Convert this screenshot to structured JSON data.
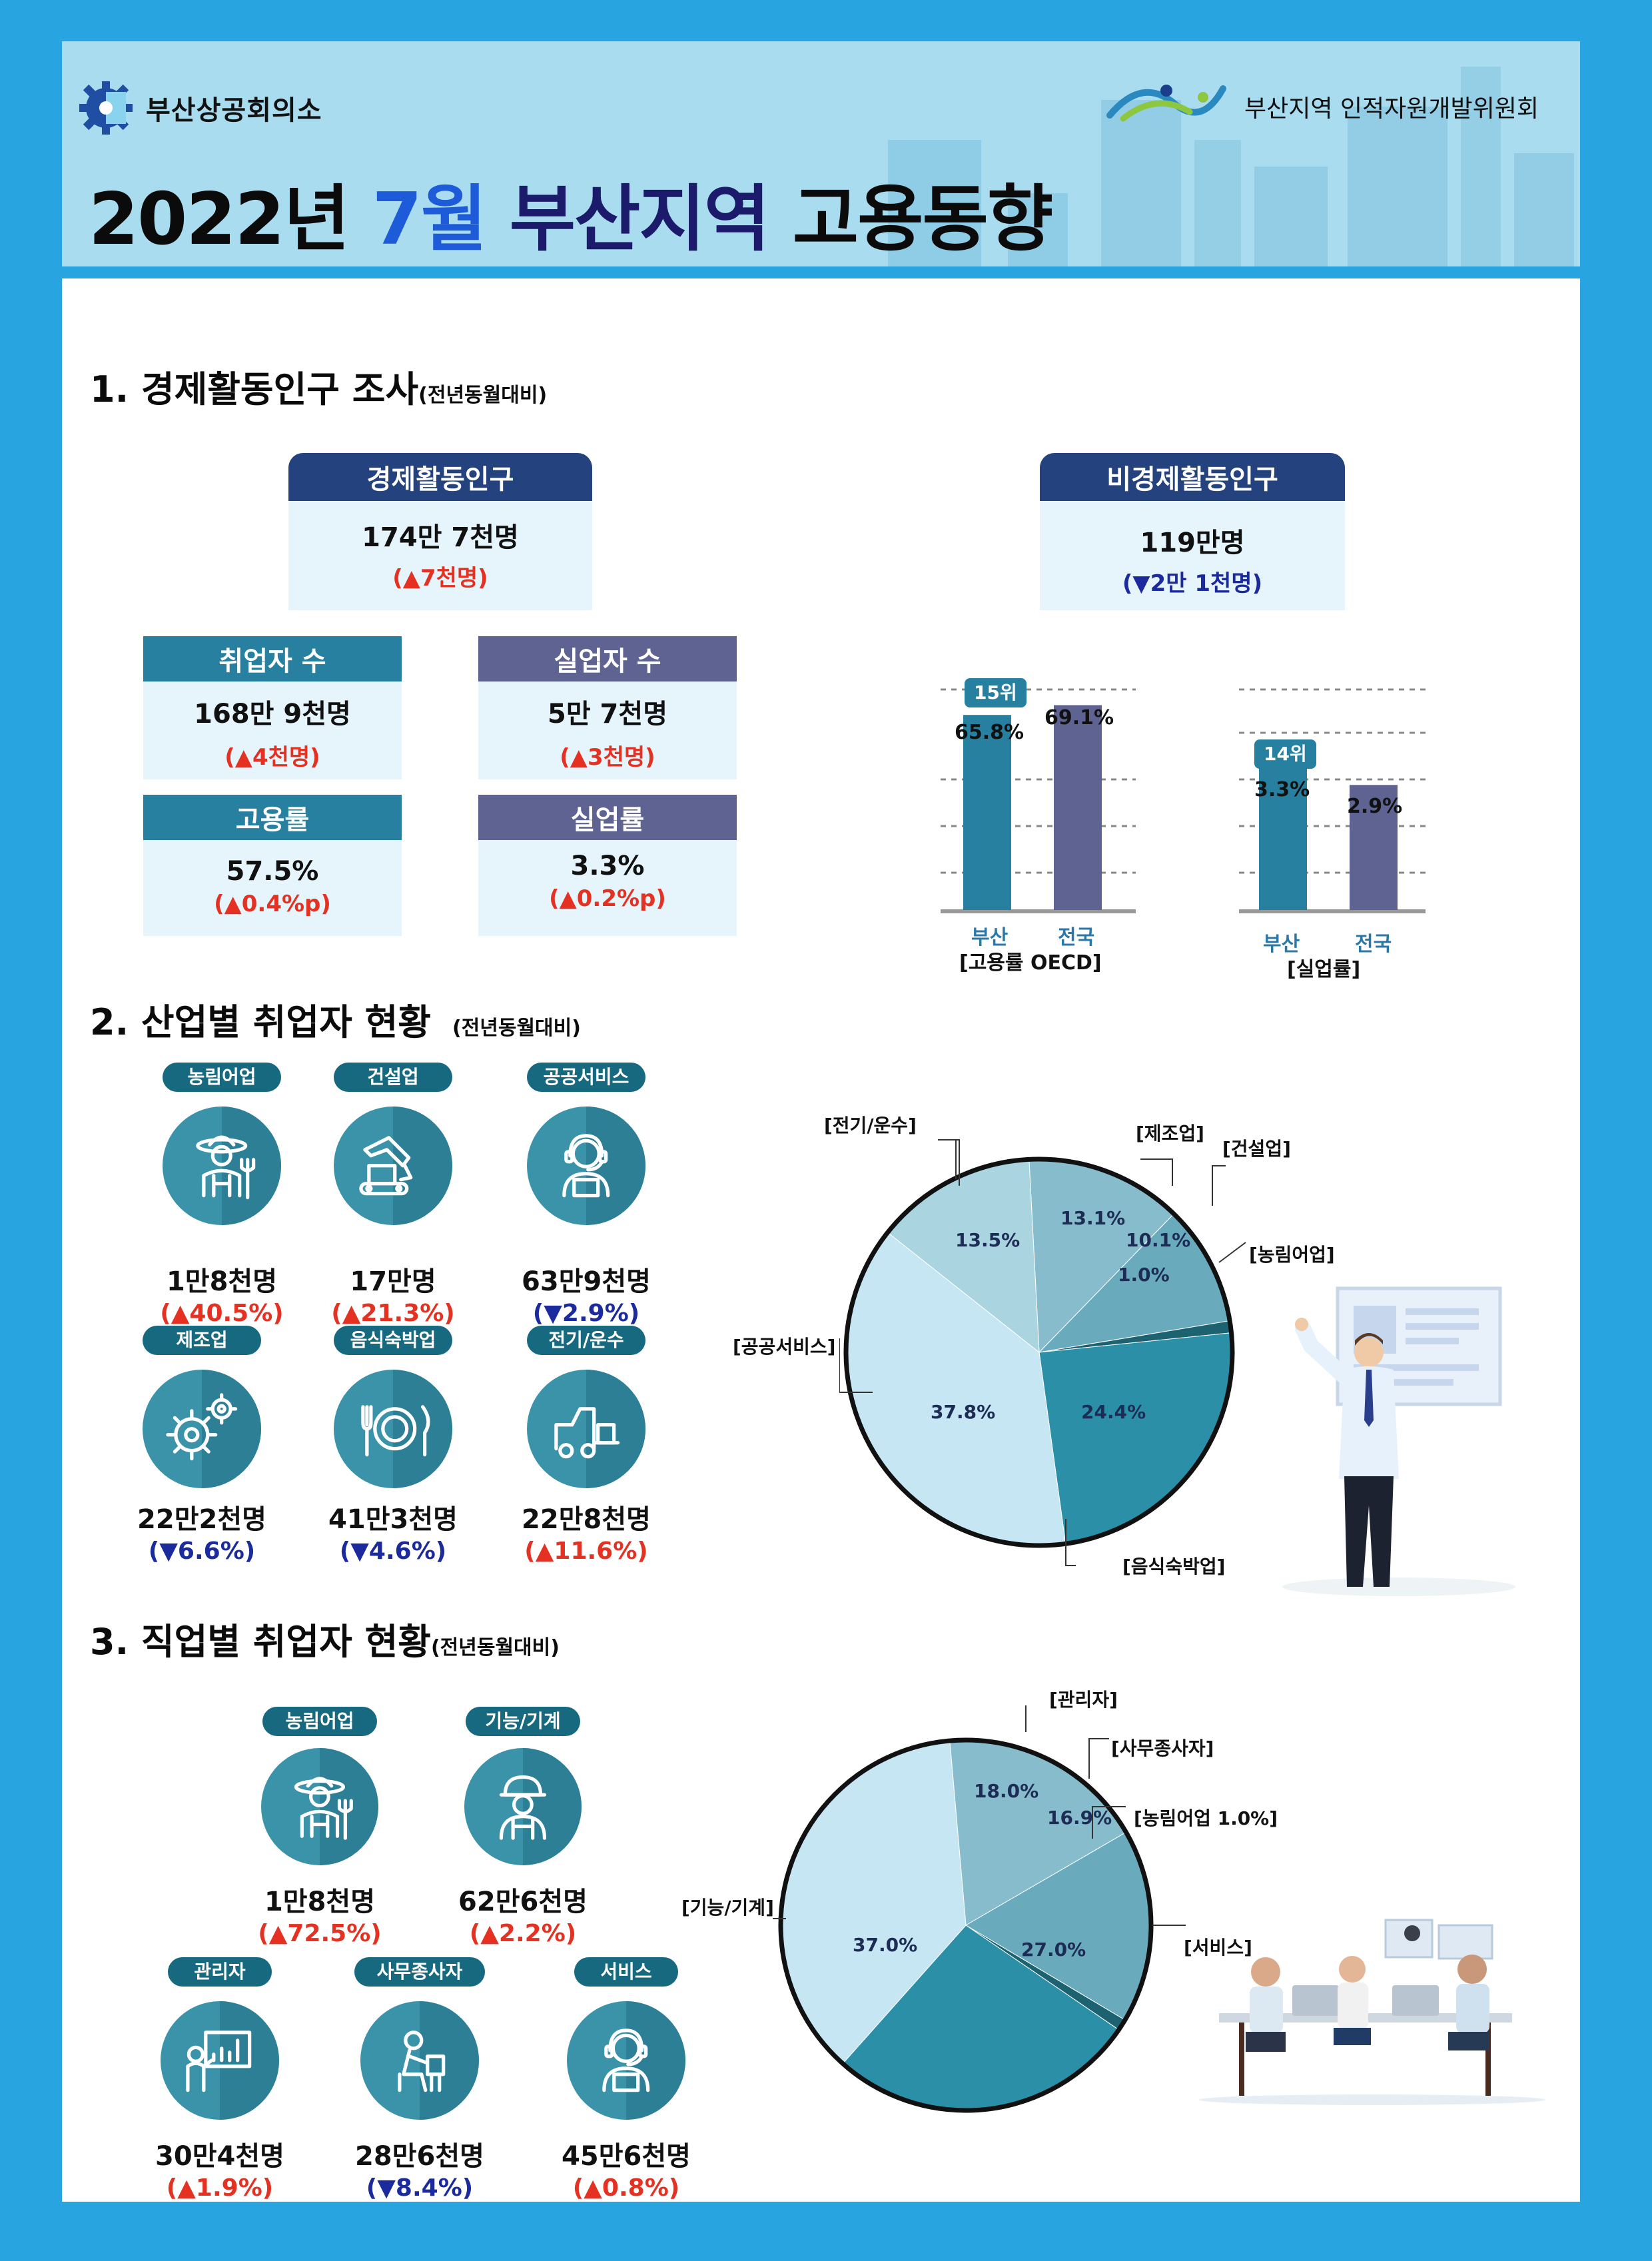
{
  "header": {
    "org_left": "부산상공회의소",
    "org_right": "부산지역 인적자원개발위원회",
    "title_part1": "2022년",
    "title_part2": "7월",
    "title_part3": "부산지역",
    "title_part4": "고용동향"
  },
  "section1": {
    "title": "1. 경제활동인구 조사",
    "subtitle": "(전년동월대비)",
    "active": {
      "label": "경제활동인구",
      "value": "174만 7천명",
      "change": "(▲7천명)"
    },
    "inactive": {
      "label": "비경제활동인구",
      "value": "119만명",
      "change": "(▼2만 1천명)"
    },
    "employed": {
      "label": "취업자 수",
      "value": "168만 9천명",
      "change": "(▲4천명)"
    },
    "unemployed": {
      "label": "실업자 수",
      "value": "5만 7천명",
      "change": "(▲3천명)"
    },
    "employment_rate": {
      "label": "고용률",
      "value": "57.5%",
      "change": "(▲0.4%p)"
    },
    "unemployment_rate": {
      "label": "실업률",
      "value": "3.3%",
      "change": "(▲0.2%p)"
    }
  },
  "chart_data": [
    {
      "type": "bar",
      "categories": [
        "부산",
        "전국"
      ],
      "values": [
        65.8,
        69.1
      ],
      "value_labels": [
        "65.8%",
        "69.1%"
      ],
      "rank_badge": "15위",
      "xlabel": "[고용률 OECD]",
      "ylim": [
        0,
        80
      ],
      "colors": [
        "#27809f",
        "#5e6391"
      ]
    },
    {
      "type": "bar",
      "categories": [
        "부산",
        "전국"
      ],
      "values": [
        3.3,
        2.9
      ],
      "value_labels": [
        "3.3%",
        "2.9%"
      ],
      "rank_badge": "14위",
      "xlabel": "[실업률]",
      "ylim": [
        0,
        5.5
      ],
      "colors": [
        "#27809f",
        "#5e6391"
      ]
    },
    {
      "type": "pie",
      "labels": [
        "제조업",
        "건설업",
        "농림어업",
        "음식숙박업",
        "공공서비스",
        "전기/운수"
      ],
      "values": [
        13.1,
        10.1,
        1.0,
        24.4,
        37.8,
        13.5
      ],
      "pct_labels": [
        "13.1%",
        "10.1%",
        "1.0%",
        "24.4%",
        "37.8%",
        "13.5%"
      ],
      "legend_labels": [
        "[제조업]",
        "[건설업]",
        "[농림어업]",
        "[음식숙박업]",
        "[공공서비스]",
        "[전기/운수]"
      ],
      "colors": [
        "#86bccb",
        "#6aaabd",
        "#1d6270",
        "#2b90a7",
        "#c6e6f3",
        "#a9d4e0"
      ]
    },
    {
      "type": "pie",
      "labels": [
        "관리자",
        "사무종사자",
        "농림어업",
        "서비스",
        "기능/기계"
      ],
      "values": [
        18.0,
        16.9,
        1.0,
        27.0,
        37.0
      ],
      "pct_labels": [
        "18.0%",
        "16.9%",
        "",
        "27.0%",
        "37.0%"
      ],
      "legend_labels": [
        "[관리자]",
        "[사무종사자]",
        "[농림어업 1.0%]",
        "[서비스]",
        "[기능/기계]"
      ],
      "colors": [
        "#86bccb",
        "#6aaabd",
        "#1d6270",
        "#2b90a7",
        "#c6e6f3"
      ]
    }
  ],
  "section2": {
    "title": "2. 산업별 취업자 현황",
    "subtitle": "(전년동월대비)",
    "items": [
      {
        "label": "농림어업",
        "value": "1만8천명",
        "change": "(▲40.5%)",
        "dir": "up",
        "icon": "farmer-icon"
      },
      {
        "label": "건설업",
        "value": "17만명",
        "change": "(▲21.3%)",
        "dir": "up",
        "icon": "excavator-icon"
      },
      {
        "label": "공공서비스",
        "value": "63만9천명",
        "change": "(▼2.9%)",
        "dir": "down",
        "icon": "headset-worker-icon"
      },
      {
        "label": "제조업",
        "value": "22만2천명",
        "change": "(▼6.6%)",
        "dir": "down",
        "icon": "gears-icon"
      },
      {
        "label": "음식숙박업",
        "value": "41만3천명",
        "change": "(▼4.6%)",
        "dir": "down",
        "icon": "plate-cutlery-icon"
      },
      {
        "label": "전기/운수",
        "value": "22만8천명",
        "change": "(▲11.6%)",
        "dir": "up",
        "icon": "forklift-icon"
      }
    ]
  },
  "section3": {
    "title": "3. 직업별 취업자 현황",
    "subtitle": "(전년동월대비)",
    "items": [
      {
        "label": "농림어업",
        "value": "1만8천명",
        "change": "(▲72.5%)",
        "dir": "up",
        "icon": "farmer-icon"
      },
      {
        "label": "기능/기계",
        "value": "62만6천명",
        "change": "(▲2.2%)",
        "dir": "up",
        "icon": "hardhat-worker-icon"
      },
      {
        "label": "관리자",
        "value": "30만4천명",
        "change": "(▲1.9%)",
        "dir": "up",
        "icon": "presenter-icon"
      },
      {
        "label": "사무종사자",
        "value": "28만6천명",
        "change": "(▼8.4%)",
        "dir": "down",
        "icon": "office-worker-icon"
      },
      {
        "label": "서비스",
        "value": "45만6천명",
        "change": "(▲0.8%)",
        "dir": "up",
        "icon": "headset-worker-icon"
      }
    ]
  }
}
